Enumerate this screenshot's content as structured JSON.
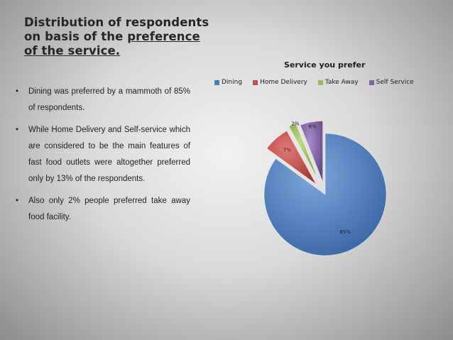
{
  "slide": {
    "title_line1": "Distribution of respondents",
    "title_line2_prefix": "on basis of the ",
    "title_line2_emph": "preference",
    "title_line3": "of the service.",
    "bullets": [
      "Dining was preferred by a mammoth of 85% of respondents.",
      "While Home Delivery and Self-service which are considered to be the main features of fast food outlets were altogether preferred only by 13% of the respondents.",
      "Also only 2% people preferred take away food facility."
    ]
  },
  "chart_data": {
    "type": "pie",
    "title": "Service you prefer",
    "categories": [
      "Dining",
      "Home Delivery",
      "Take Away",
      "Self Service"
    ],
    "values": [
      85,
      7,
      2,
      6
    ],
    "labels": [
      "85%",
      "7%",
      "2%",
      "6%"
    ],
    "colors": [
      "#4a7ebb",
      "#c0504d",
      "#9bbb59",
      "#8064a2"
    ],
    "exploded": true,
    "legend_position": "top"
  }
}
